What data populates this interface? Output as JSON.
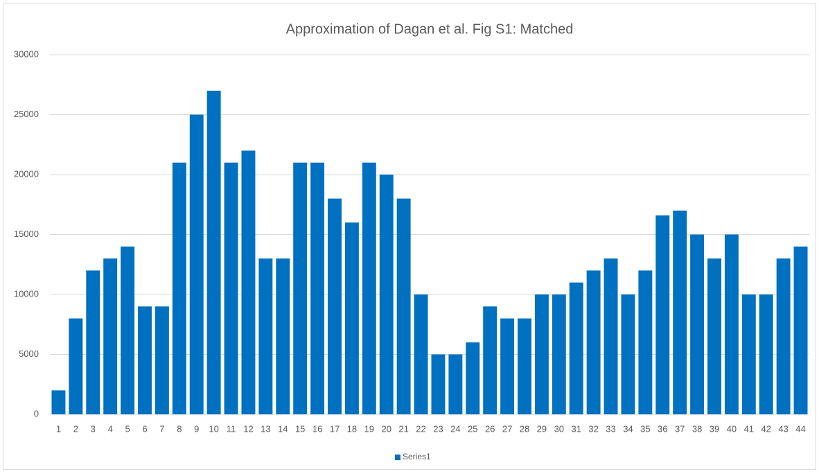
{
  "chart_data": {
    "type": "bar",
    "title": "Approximation of Dagan et al. Fig S1: Matched",
    "categories": [
      "1",
      "2",
      "3",
      "4",
      "5",
      "6",
      "7",
      "8",
      "9",
      "10",
      "11",
      "12",
      "13",
      "14",
      "15",
      "16",
      "17",
      "18",
      "19",
      "20",
      "21",
      "22",
      "23",
      "24",
      "25",
      "26",
      "27",
      "28",
      "29",
      "30",
      "31",
      "32",
      "33",
      "34",
      "35",
      "36",
      "37",
      "38",
      "39",
      "40",
      "41",
      "42",
      "43",
      "44"
    ],
    "series": [
      {
        "name": "Series1",
        "color": "#0070c0",
        "values": [
          2000,
          8000,
          12000,
          13000,
          14000,
          9000,
          9000,
          21000,
          25000,
          27000,
          21000,
          22000,
          13000,
          13000,
          21000,
          21000,
          18000,
          16000,
          21000,
          20000,
          18000,
          10000,
          5000,
          5000,
          6000,
          9000,
          8000,
          8000,
          10000,
          10000,
          11000,
          12000,
          13000,
          10000,
          12000,
          16600,
          17000,
          15000,
          13000,
          15000,
          10000,
          10000,
          13000,
          14000
        ]
      }
    ],
    "ylim": [
      0,
      30000
    ],
    "yticks": [
      0,
      5000,
      10000,
      15000,
      20000,
      25000,
      30000
    ],
    "grid": true,
    "legend": "bottom"
  }
}
